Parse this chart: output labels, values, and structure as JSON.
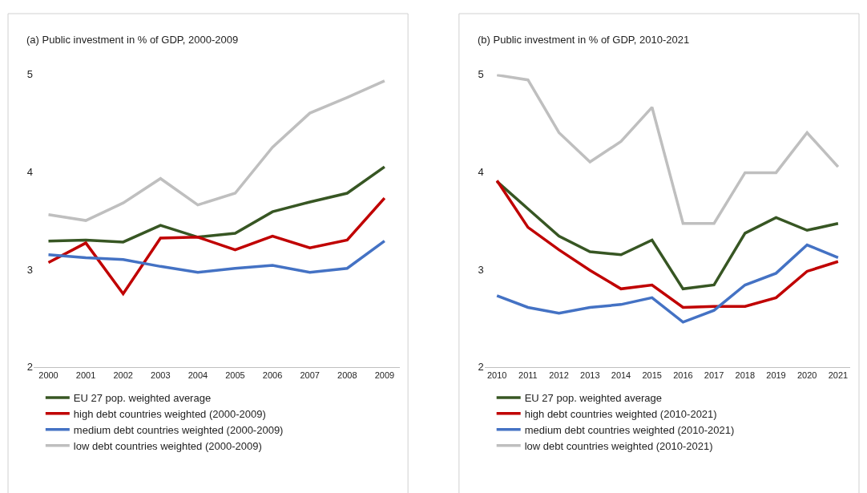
{
  "chart_data": [
    {
      "type": "line",
      "title": "(a) Public investment in % of GDP, 2000-2009",
      "categories": [
        "2000",
        "2001",
        "2002",
        "2003",
        "2004",
        "2005",
        "2006",
        "2007",
        "2008",
        "2009"
      ],
      "ylim": [
        2,
        5
      ],
      "yticks": [
        2,
        3,
        4,
        5
      ],
      "grid": false,
      "legend": "bottom",
      "marker": "none",
      "line_style": "solid",
      "series": [
        {
          "name": "EU 27 pop. weighted average",
          "color": "#375623",
          "values": [
            3.29,
            3.3,
            3.28,
            3.45,
            3.33,
            3.37,
            3.59,
            3.69,
            3.78,
            4.05
          ]
        },
        {
          "name": "high debt countries weighted (2000-2009)",
          "color": "#c00000",
          "values": [
            3.07,
            3.27,
            2.75,
            3.32,
            3.33,
            3.2,
            3.34,
            3.22,
            3.3,
            3.73
          ]
        },
        {
          "name": "medium debt countries weighted (2000-2009)",
          "color": "#4472c4",
          "values": [
            3.15,
            3.12,
            3.1,
            3.03,
            2.97,
            3.01,
            3.04,
            2.97,
            3.01,
            3.29
          ]
        },
        {
          "name": "low debt countries weighted (2000-2009)",
          "color": "#bfbfbf",
          "values": [
            3.56,
            3.5,
            3.68,
            3.93,
            3.66,
            3.78,
            4.25,
            4.6,
            4.76,
            4.93
          ]
        }
      ]
    },
    {
      "type": "line",
      "title": "(b) Public investment in % of GDP, 2010-2021",
      "categories": [
        "2010",
        "2011",
        "2012",
        "2013",
        "2014",
        "2015",
        "2016",
        "2017",
        "2018",
        "2019",
        "2020",
        "2021"
      ],
      "ylim": [
        2,
        5
      ],
      "yticks": [
        2,
        3,
        4,
        5
      ],
      "grid": false,
      "legend": "bottom",
      "marker": "none",
      "line_style": "solid",
      "series": [
        {
          "name": "EU 27 pop. weighted average",
          "color": "#375623",
          "values": [
            3.9,
            3.62,
            3.34,
            3.18,
            3.15,
            3.3,
            2.8,
            2.84,
            3.37,
            3.53,
            3.4,
            3.47
          ]
        },
        {
          "name": "high debt countries weighted (2010-2021)",
          "color": "#c00000",
          "values": [
            3.91,
            3.43,
            3.2,
            2.99,
            2.8,
            2.84,
            2.61,
            2.62,
            2.62,
            2.71,
            2.98,
            3.08
          ]
        },
        {
          "name": "medium debt countries weighted (2010-2021)",
          "color": "#4472c4",
          "values": [
            2.73,
            2.61,
            2.55,
            2.61,
            2.64,
            2.71,
            2.46,
            2.58,
            2.84,
            2.96,
            3.25,
            3.12
          ]
        },
        {
          "name": "low debt countries weighted (2010-2021)",
          "color": "#bfbfbf",
          "values": [
            4.99,
            4.94,
            4.4,
            4.1,
            4.31,
            4.66,
            3.47,
            3.47,
            3.99,
            3.99,
            4.4,
            4.05
          ]
        }
      ]
    }
  ]
}
